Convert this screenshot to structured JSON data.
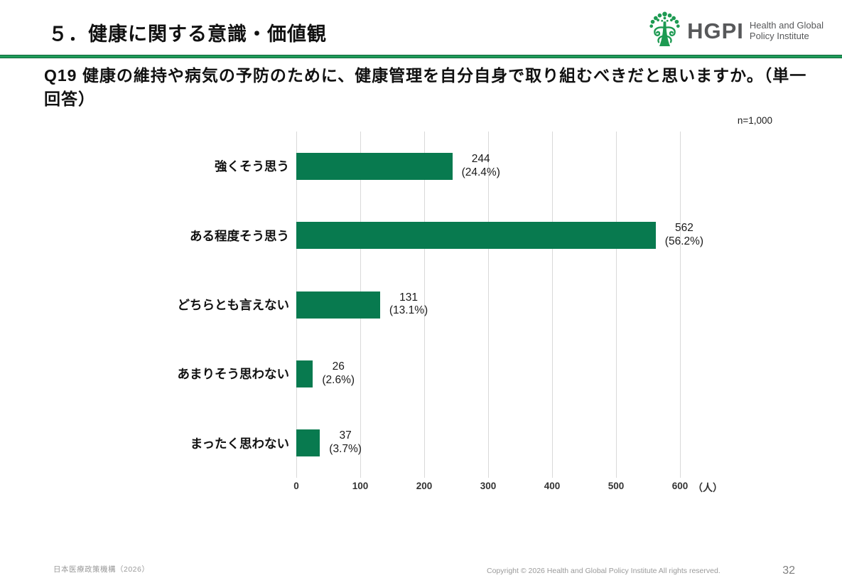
{
  "slide": {
    "title": "５．健康に関する意識・価値観"
  },
  "logo": {
    "abbr": "HGPI",
    "name_line1": "Health and Global",
    "name_line2": "Policy Institute",
    "tree_color": "#1d9a52",
    "text_color": "#57585a"
  },
  "question": {
    "text": "Q19 健康の維持や病気の予防のために、健康管理を自分自身で取り組むべきだと思いますか。（単一回答）"
  },
  "chart_data": {
    "type": "bar",
    "orientation": "horizontal",
    "n_label": "n=1,000",
    "categories": [
      "強くそう思う",
      "ある程度そう思う",
      "どちらとも言えない",
      "あまりそう思わない",
      "まったく思わない"
    ],
    "values": [
      244,
      562,
      131,
      26,
      37
    ],
    "percents": [
      24.4,
      56.2,
      13.1,
      2.6,
      3.7
    ],
    "count_labels": [
      "244",
      "562",
      "131",
      "26",
      "37"
    ],
    "pct_labels": [
      "(24.4%)",
      "(56.2%)",
      "(13.1%)",
      "(2.6%)",
      "(3.7%)"
    ],
    "x_ticks": [
      "0",
      "100",
      "200",
      "300",
      "400",
      "500",
      "600"
    ],
    "x_unit": "（人）",
    "xlim": [
      0,
      600
    ],
    "grid": true,
    "legend": false,
    "bar_color": "#087a4f"
  },
  "colors": {
    "divider_green": "#1f9c5a",
    "bar_green": "#087a4f",
    "gridline": "#d9d9d9"
  },
  "footer": {
    "left": "日本医療政策機構（2026）",
    "center": "Copyright © 2026 Health and Global Policy Institute  All rights reserved.",
    "page": "32"
  }
}
